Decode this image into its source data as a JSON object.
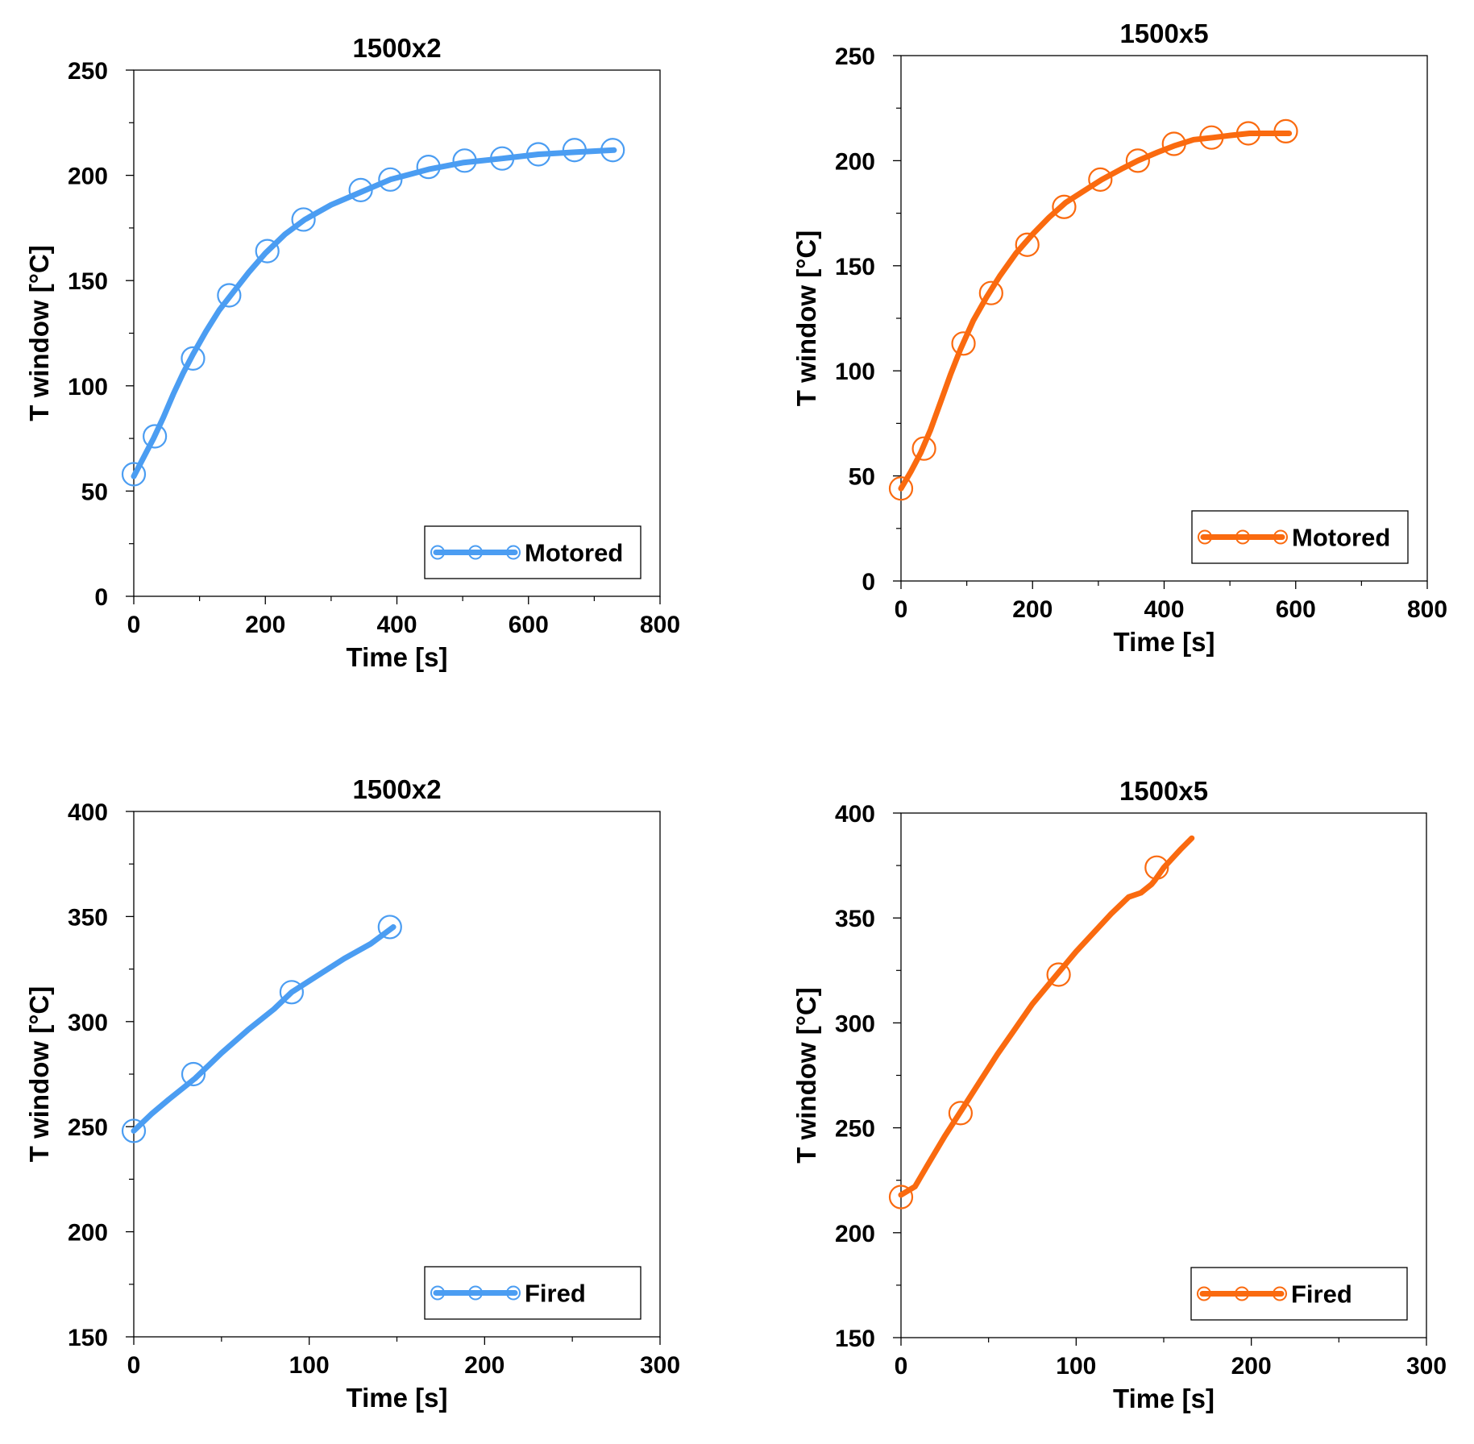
{
  "chart_data": [
    {
      "type": "line",
      "title": "1500x2",
      "xlabel": "Time [s]",
      "ylabel": "T window [°C]",
      "xlim": [
        0,
        800
      ],
      "ylim": [
        0,
        250
      ],
      "xticks": [
        0,
        200,
        400,
        600,
        800
      ],
      "yticks": [
        0,
        50,
        100,
        150,
        200,
        250
      ],
      "color": "#4B9DF2",
      "legend": "Motored",
      "legend_position": "bottom-right",
      "series": [
        {
          "name": "Motored",
          "x": [
            0,
            10,
            20,
            30,
            45,
            60,
            75,
            90,
            110,
            130,
            150,
            175,
            200,
            230,
            260,
            300,
            345,
            390,
            450,
            500,
            560,
            615,
            670,
            730
          ],
          "y": [
            57,
            63,
            69,
            75,
            85,
            96,
            106,
            115,
            126,
            136,
            144,
            154,
            163,
            172,
            179,
            186,
            192,
            198,
            203,
            206,
            208,
            210,
            211,
            212
          ],
          "markers_x": [
            0,
            32,
            90,
            145,
            203,
            258,
            345,
            390,
            448,
            503,
            560,
            615,
            670,
            728
          ],
          "markers_y": [
            58,
            76,
            113,
            143,
            164,
            179,
            193,
            198,
            204,
            207,
            208,
            210,
            212,
            212
          ]
        }
      ]
    },
    {
      "type": "line",
      "title": "1500x5",
      "xlabel": "Time [s]",
      "ylabel": "T window [°C]",
      "xlim": [
        0,
        800
      ],
      "ylim": [
        0,
        250
      ],
      "xticks": [
        0,
        200,
        400,
        600,
        800
      ],
      "yticks": [
        0,
        50,
        100,
        150,
        200,
        250
      ],
      "color": "#FA6A0F",
      "legend": "Motored",
      "legend_position": "bottom-right",
      "series": [
        {
          "name": "Motored",
          "x": [
            0,
            15,
            30,
            45,
            60,
            75,
            90,
            110,
            130,
            150,
            175,
            200,
            225,
            250,
            280,
            305,
            335,
            360,
            390,
            415,
            445,
            475,
            500,
            530,
            560,
            590
          ],
          "y": [
            44,
            52,
            61,
            72,
            85,
            98,
            110,
            124,
            135,
            145,
            156,
            165,
            173,
            180,
            186,
            191,
            196,
            200,
            204,
            207,
            210,
            211,
            212,
            213,
            213,
            213
          ],
          "markers_x": [
            0,
            35,
            95,
            137,
            192,
            248,
            303,
            360,
            415,
            472,
            528,
            585
          ],
          "markers_y": [
            44,
            63,
            113,
            137,
            160,
            178,
            191,
            200,
            208,
            211,
            213,
            214
          ]
        }
      ]
    },
    {
      "type": "line",
      "title": "1500x2",
      "xlabel": "Time [s]",
      "ylabel": "T window [°C]",
      "xlim": [
        0,
        300
      ],
      "ylim": [
        150,
        400
      ],
      "xticks": [
        0,
        100,
        200,
        300
      ],
      "yticks": [
        150,
        200,
        250,
        300,
        350,
        400
      ],
      "color": "#4B9DF2",
      "legend": "Fired",
      "legend_position": "bottom-right",
      "series": [
        {
          "name": "Fired",
          "x": [
            0,
            10,
            20,
            35,
            50,
            65,
            80,
            90,
            105,
            120,
            135,
            148
          ],
          "y": [
            248,
            256,
            263,
            273,
            285,
            296,
            306,
            314,
            322,
            330,
            337,
            345
          ],
          "markers_x": [
            0,
            34,
            90,
            146
          ],
          "markers_y": [
            248,
            275,
            314,
            345
          ]
        }
      ]
    },
    {
      "type": "line",
      "title": "1500x5",
      "xlabel": "Time [s]",
      "ylabel": "T window [°C]",
      "xlim": [
        0,
        300
      ],
      "ylim": [
        150,
        400
      ],
      "xticks": [
        0,
        100,
        200,
        300
      ],
      "yticks": [
        150,
        200,
        250,
        300,
        350,
        400
      ],
      "color": "#FA6A0F",
      "legend": "Fired",
      "legend_position": "bottom-right",
      "series": [
        {
          "name": "Fired",
          "x": [
            0,
            8,
            15,
            25,
            35,
            45,
            55,
            65,
            75,
            90,
            100,
            110,
            120,
            130,
            137,
            140,
            143,
            145,
            150,
            160,
            166
          ],
          "y": [
            218,
            222,
            232,
            246,
            259,
            272,
            285,
            297,
            309,
            324,
            334,
            343,
            352,
            360,
            362,
            364,
            366,
            368,
            374,
            383,
            388
          ],
          "markers_x": [
            0,
            34,
            90,
            146
          ],
          "markers_y": [
            217,
            257,
            323,
            374
          ]
        }
      ]
    }
  ]
}
